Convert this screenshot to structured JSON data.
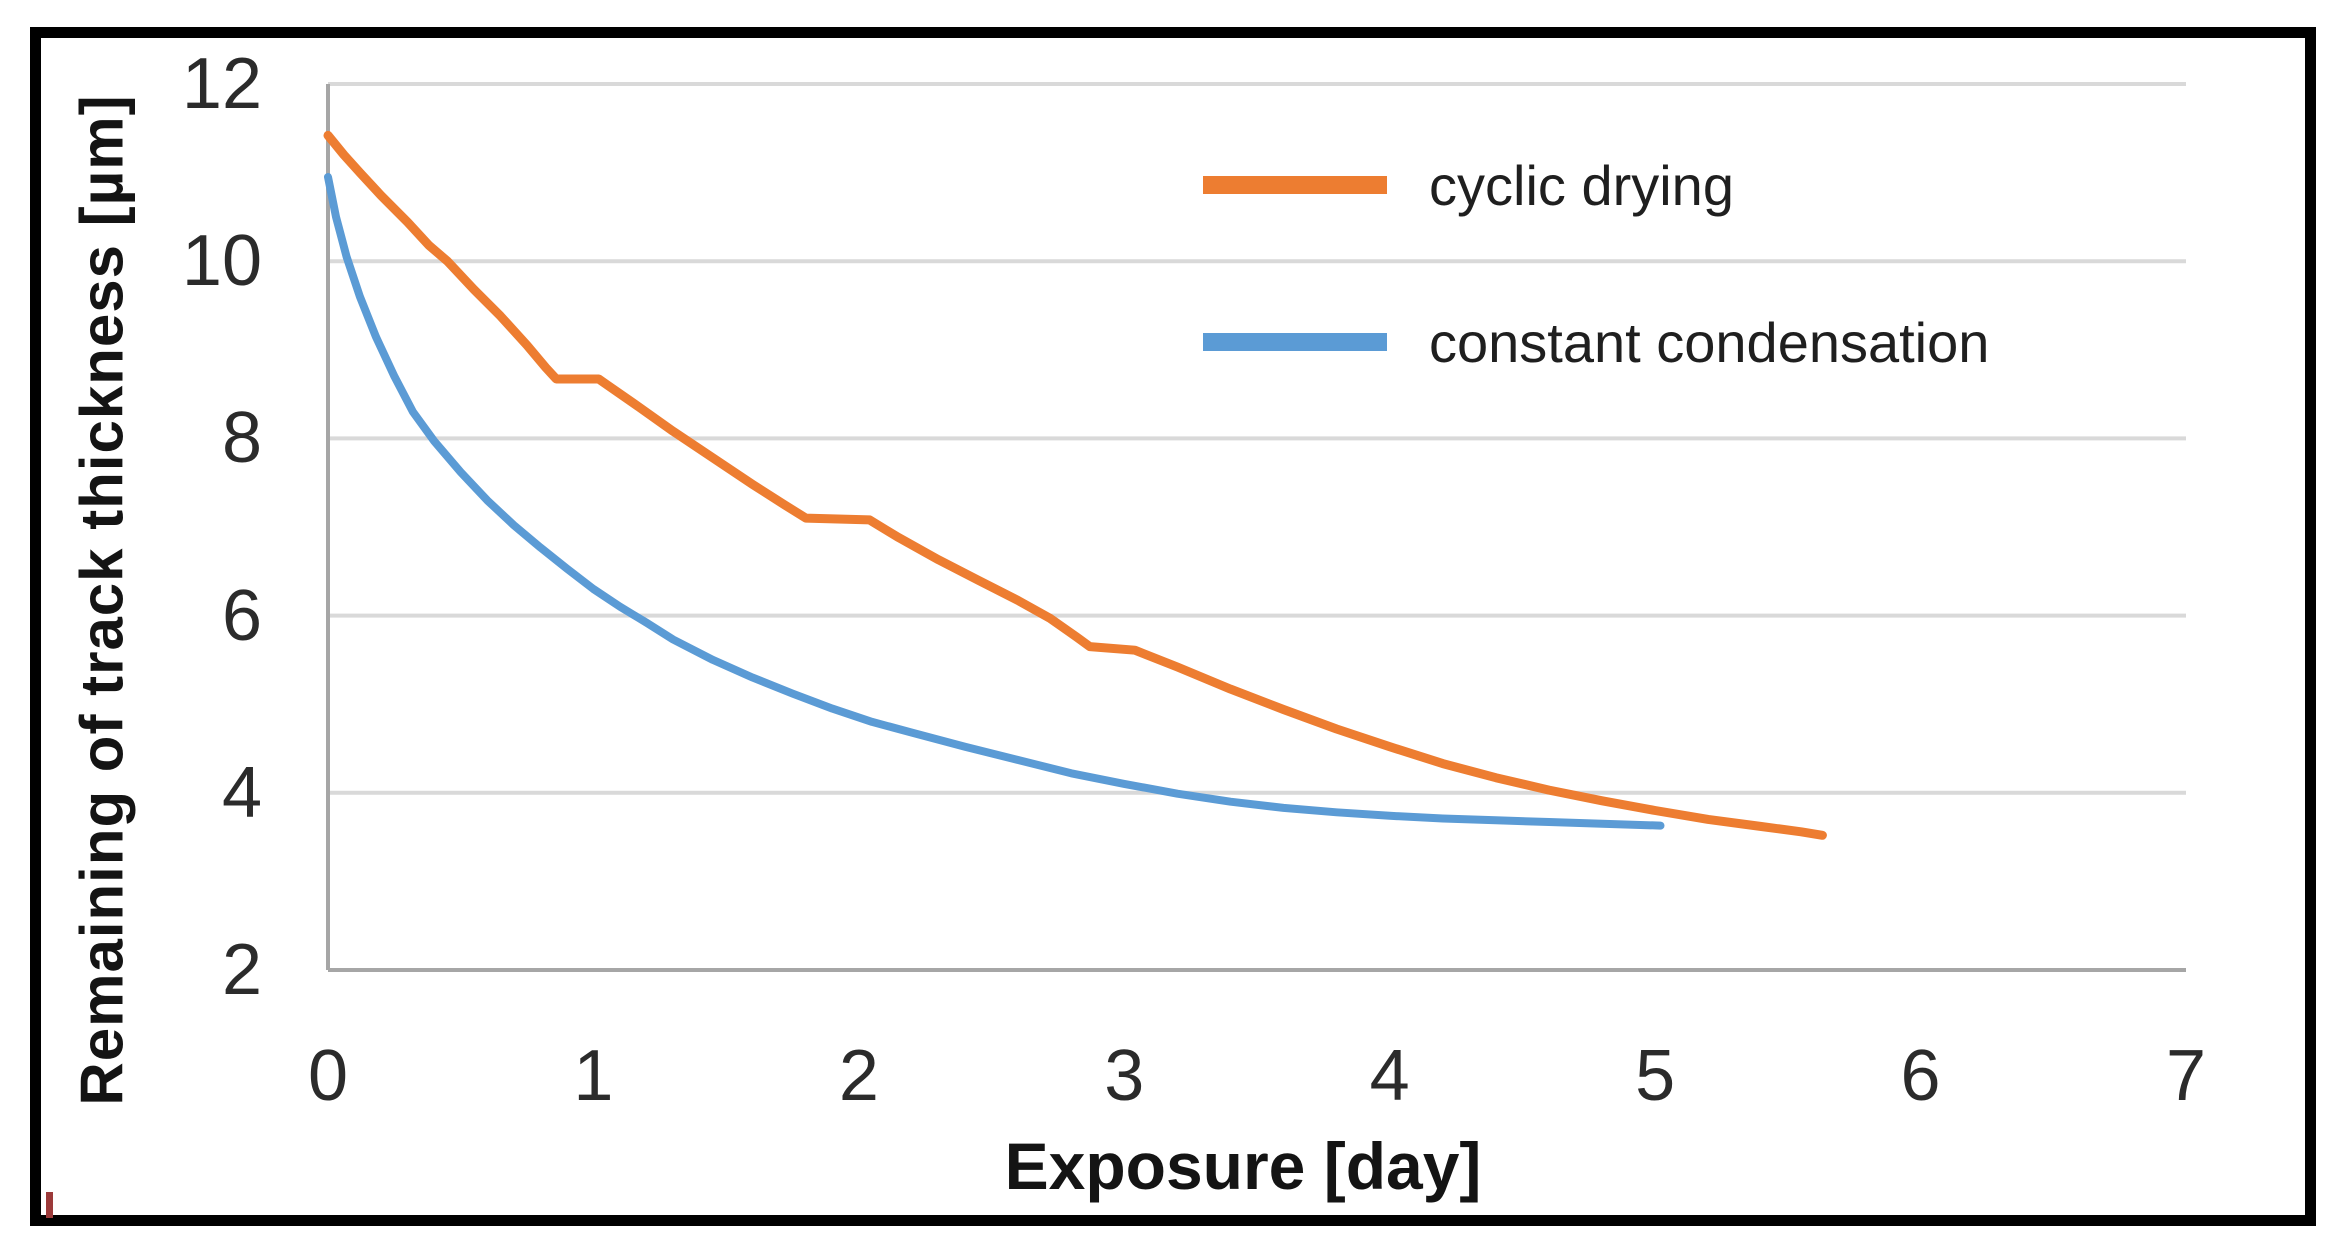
{
  "figure": {
    "background": "#ffffff",
    "border_color": "#000000",
    "artifact_mark_color": "#9c3a3a"
  },
  "chart_data": {
    "type": "line",
    "title": "",
    "xlabel": "Exposure [day]",
    "ylabel": "Remaining of track thickness [µm]",
    "xlim": [
      0,
      7
    ],
    "ylim": [
      2,
      12
    ],
    "x_ticks": [
      0,
      1,
      2,
      3,
      4,
      5,
      6,
      7
    ],
    "y_ticks": [
      2,
      4,
      6,
      8,
      10,
      12
    ],
    "grid": "horizontal",
    "gridline_color": "#d9d9d9",
    "axis_line_color": "#a6a6a6",
    "legend_position": "inside-top-right",
    "series": [
      {
        "name": "cyclic drying",
        "color": "#ED7D31",
        "stroke_width": 9,
        "points": [
          [
            0,
            11.42
          ],
          [
            0.06,
            11.2
          ],
          [
            0.12,
            11.0
          ],
          [
            0.2,
            10.74
          ],
          [
            0.3,
            10.44
          ],
          [
            0.38,
            10.18
          ],
          [
            0.45,
            10.0
          ],
          [
            0.55,
            9.68
          ],
          [
            0.65,
            9.38
          ],
          [
            0.75,
            9.05
          ],
          [
            0.82,
            8.8
          ],
          [
            0.86,
            8.67
          ],
          [
            1.02,
            8.67
          ],
          [
            1.15,
            8.4
          ],
          [
            1.3,
            8.08
          ],
          [
            1.45,
            7.78
          ],
          [
            1.6,
            7.48
          ],
          [
            1.72,
            7.25
          ],
          [
            1.8,
            7.1
          ],
          [
            2.04,
            7.08
          ],
          [
            2.15,
            6.88
          ],
          [
            2.3,
            6.63
          ],
          [
            2.45,
            6.4
          ],
          [
            2.6,
            6.17
          ],
          [
            2.72,
            5.97
          ],
          [
            2.82,
            5.76
          ],
          [
            2.87,
            5.65
          ],
          [
            3.04,
            5.61
          ],
          [
            3.2,
            5.42
          ],
          [
            3.4,
            5.17
          ],
          [
            3.6,
            4.94
          ],
          [
            3.8,
            4.72
          ],
          [
            4.0,
            4.52
          ],
          [
            4.2,
            4.33
          ],
          [
            4.4,
            4.17
          ],
          [
            4.6,
            4.03
          ],
          [
            4.8,
            3.91
          ],
          [
            5.0,
            3.8
          ],
          [
            5.2,
            3.7
          ],
          [
            5.4,
            3.62
          ],
          [
            5.55,
            3.56
          ],
          [
            5.63,
            3.52
          ]
        ]
      },
      {
        "name": "constant condensation",
        "color": "#5B9BD5",
        "stroke_width": 8,
        "points": [
          [
            0,
            10.95
          ],
          [
            0.03,
            10.5
          ],
          [
            0.07,
            10.05
          ],
          [
            0.12,
            9.6
          ],
          [
            0.18,
            9.15
          ],
          [
            0.25,
            8.7
          ],
          [
            0.32,
            8.3
          ],
          [
            0.4,
            7.97
          ],
          [
            0.5,
            7.62
          ],
          [
            0.6,
            7.3
          ],
          [
            0.7,
            7.02
          ],
          [
            0.8,
            6.77
          ],
          [
            0.9,
            6.53
          ],
          [
            1.0,
            6.3
          ],
          [
            1.1,
            6.1
          ],
          [
            1.2,
            5.92
          ],
          [
            1.3,
            5.73
          ],
          [
            1.45,
            5.5
          ],
          [
            1.6,
            5.3
          ],
          [
            1.75,
            5.12
          ],
          [
            1.9,
            4.95
          ],
          [
            2.05,
            4.8
          ],
          [
            2.2,
            4.68
          ],
          [
            2.4,
            4.52
          ],
          [
            2.6,
            4.37
          ],
          [
            2.8,
            4.22
          ],
          [
            3.0,
            4.1
          ],
          [
            3.2,
            3.99
          ],
          [
            3.4,
            3.9
          ],
          [
            3.6,
            3.83
          ],
          [
            3.8,
            3.78
          ],
          [
            4.0,
            3.74
          ],
          [
            4.2,
            3.71
          ],
          [
            4.4,
            3.69
          ],
          [
            4.6,
            3.67
          ],
          [
            4.8,
            3.65
          ],
          [
            5.02,
            3.63
          ]
        ]
      }
    ]
  }
}
